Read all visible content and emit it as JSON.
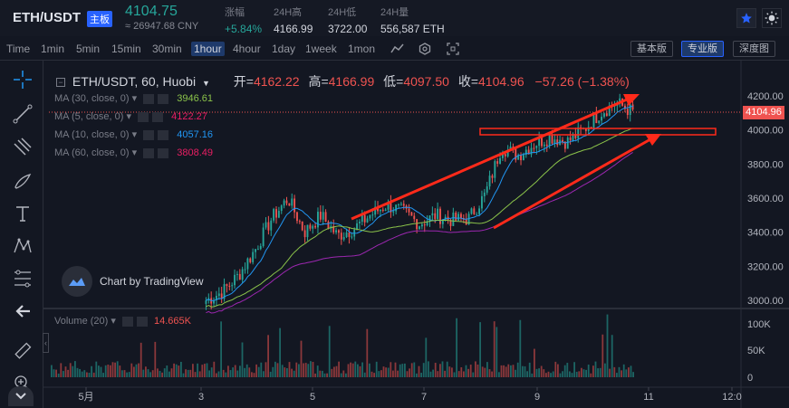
{
  "header": {
    "pair": "ETH/USDT",
    "pair_tag": "主板",
    "last_price": "4104.75",
    "last_cny": "≈ 26947.68 CNY",
    "stats": [
      {
        "label": "涨幅",
        "value": "+5.84%"
      },
      {
        "label": "24H高",
        "value": "4166.99"
      },
      {
        "label": "24H低",
        "value": "3722.00"
      },
      {
        "label": "24H量",
        "value": "556,587 ETH"
      }
    ],
    "star_icon": "star-icon",
    "theme_icon": "sun-icon"
  },
  "toolbar": {
    "timeframes": [
      "Time",
      "1min",
      "5min",
      "15min",
      "30min",
      "1hour",
      "4hour",
      "1day",
      "1week",
      "1mon"
    ],
    "active_timeframe": "1hour",
    "views": [
      "基本版",
      "专业版",
      "深度图"
    ],
    "active_view": "专业版"
  },
  "legend": {
    "symbol": "ETH/USDT, 60, Huobi",
    "open_label": "开=",
    "open": "4162.22",
    "high_label": "高=",
    "high": "4166.99",
    "low_label": "低=",
    "low": "4097.50",
    "close_label": "收=",
    "close": "4104.96",
    "change": "−57.26 (−1.38%)"
  },
  "ma": [
    {
      "label": "MA (30, close, 0)",
      "value": "3946.61",
      "color": "#9c27b0"
    },
    {
      "label": "MA (5, close, 0)",
      "value": "4122.27",
      "color": "#e91e63"
    },
    {
      "label": "MA (10, close, 0)",
      "value": "4057.16",
      "color": "#2196f3"
    },
    {
      "label": "MA (60, close, 0)",
      "value": "3808.49",
      "color": "#e91e63"
    }
  ],
  "watermark": "Chart by TradingView",
  "volume": {
    "label": "Volume (20)",
    "value": "14.665K"
  },
  "price_axis": {
    "ticks": [
      "4200.00",
      "4000.00",
      "3800.00",
      "3600.00",
      "3400.00",
      "3200.00",
      "3000.00"
    ],
    "current": "4104.96"
  },
  "volume_axis": {
    "ticks": [
      "100K",
      "50K",
      "0"
    ]
  },
  "time_axis": {
    "ticks": [
      "5月",
      "3",
      "5",
      "7",
      "9",
      "11",
      "12:0"
    ]
  },
  "colors": {
    "up": "#26a69a",
    "down": "#ef5350",
    "accent": "#2862ff",
    "annotation": "#ff2a1a"
  },
  "chart_data": {
    "type": "candlestick",
    "price_range": [
      2950,
      4280
    ],
    "candles_close_trend": [
      3000,
      3050,
      3150,
      3300,
      3480,
      3600,
      3400,
      3500,
      3380,
      3420,
      3500,
      3560,
      3520,
      3450,
      3500,
      3470,
      3480,
      3620,
      3900,
      3850,
      3920,
      3960,
      3930,
      4000,
      4100,
      4160,
      4105
    ]
  }
}
